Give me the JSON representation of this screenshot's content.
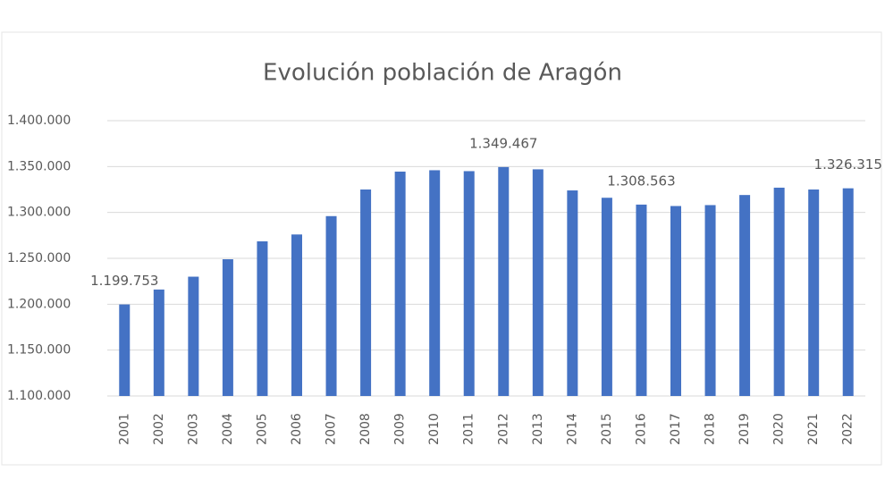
{
  "chart_data": {
    "type": "bar",
    "title": "Evolución población de Aragón",
    "categories": [
      "2001",
      "2002",
      "2003",
      "2004",
      "2005",
      "2006",
      "2007",
      "2008",
      "2009",
      "2010",
      "2011",
      "2012",
      "2013",
      "2014",
      "2015",
      "2016",
      "2017",
      "2018",
      "2019",
      "2020",
      "2021",
      "2022"
    ],
    "values": [
      1199753,
      1216000,
      1230000,
      1249000,
      1268500,
      1276000,
      1296000,
      1325000,
      1344500,
      1346000,
      1345000,
      1349467,
      1347000,
      1324000,
      1316000,
      1308563,
      1307000,
      1308000,
      1319000,
      1327000,
      1325000,
      1326315
    ],
    "value_labels": [
      "1.199.753",
      null,
      null,
      null,
      null,
      null,
      null,
      null,
      null,
      null,
      null,
      "1.349.467",
      null,
      null,
      null,
      "1.308.563",
      null,
      null,
      null,
      null,
      null,
      "1.326.315"
    ],
    "color": "#4472c4",
    "ylim": [
      1100000,
      1400000
    ],
    "yticks": [
      {
        "value": 1100000,
        "label": "1.100.000"
      },
      {
        "value": 1150000,
        "label": "1.150.000"
      },
      {
        "value": 1200000,
        "label": "1.200.000"
      },
      {
        "value": 1250000,
        "label": "1.250.000"
      },
      {
        "value": 1300000,
        "label": "1.300.000"
      },
      {
        "value": 1350000,
        "label": "1.350.000"
      },
      {
        "value": 1400000,
        "label": "1.400.000"
      }
    ],
    "grid": true
  }
}
